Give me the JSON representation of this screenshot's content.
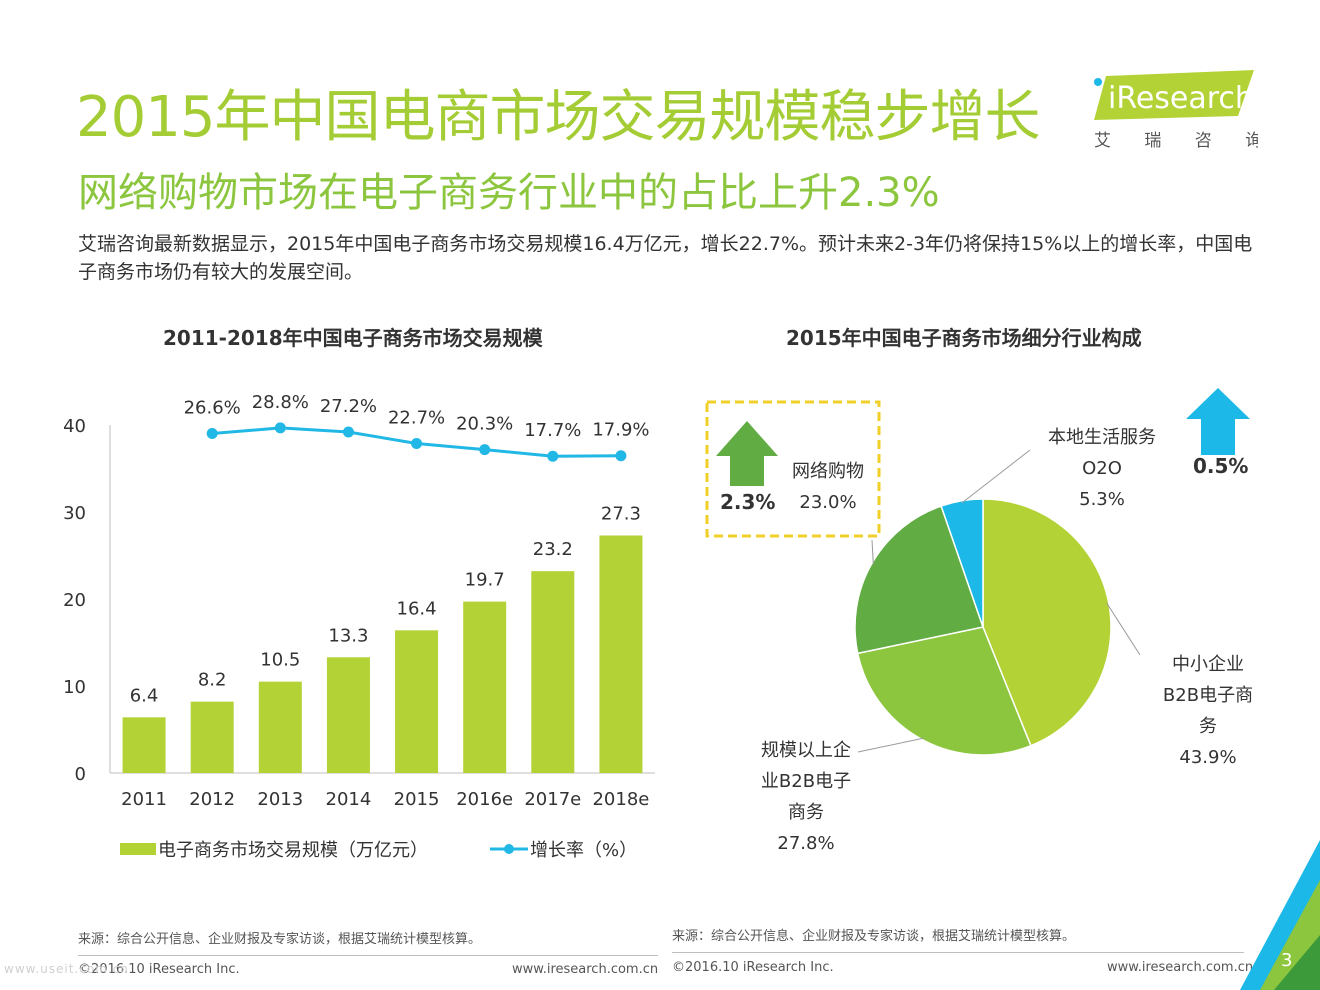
{
  "header": {
    "title": "2015年中国电商市场交易规模稳步增长",
    "subtitle": "网络购物市场在电子商务行业中的占比上升2.3%",
    "description": "艾瑞咨询最新数据显示，2015年中国电子商务市场交易规模16.4万亿元，增长22.7%。预计未来2-3年仍将保持15%以上的增长率，中国电子商务市场仍有较大的发展空间。"
  },
  "logo": {
    "brand": "iResearch",
    "cn": "艾 瑞 咨 询"
  },
  "colors": {
    "title_green": "#a4cc35",
    "bar": "#b3d235",
    "line": "#22b8e6",
    "pie1": "#b3d235",
    "pie2": "#8cc63f",
    "pie3": "#62ac44",
    "pie4": "#1cb8e8",
    "dash": "#f0d028"
  },
  "chart_data": [
    {
      "type": "bar",
      "title": "2011-2018年中国电子商务市场交易规模",
      "categories": [
        "2011",
        "2012",
        "2013",
        "2014",
        "2015",
        "2016e",
        "2017e",
        "2018e"
      ],
      "ylim": [
        0,
        40
      ],
      "yticks": [
        "0",
        "10",
        "20",
        "30",
        "40"
      ],
      "series": [
        {
          "name": "电子商务市场交易规模（万亿元）",
          "type": "bar",
          "values": [
            6.4,
            8.2,
            10.5,
            13.3,
            16.4,
            19.7,
            23.2,
            27.3
          ]
        },
        {
          "name": "增长率（%）",
          "type": "line",
          "values": [
            null,
            26.6,
            28.8,
            27.2,
            22.7,
            20.3,
            17.7,
            17.9
          ],
          "labels": [
            "",
            "26.6%",
            "28.8%",
            "27.2%",
            "22.7%",
            "20.3%",
            "17.7%",
            "17.9%"
          ]
        }
      ]
    },
    {
      "type": "pie",
      "title": "2015年中国电子商务市场细分行业构成",
      "slices": [
        {
          "label_lines": [
            "中小企业",
            "B2B电子商",
            "务"
          ],
          "value": 43.9,
          "value_label": "43.9%"
        },
        {
          "label_lines": [
            "规模以上企",
            "业B2B电子",
            "商务"
          ],
          "value": 27.8,
          "value_label": "27.8%"
        },
        {
          "label_lines": [
            "网络购物"
          ],
          "value": 23.0,
          "value_label": "23.0%"
        },
        {
          "label_lines": [
            "本地生活服务",
            "O2O"
          ],
          "value": 5.3,
          "value_label": "5.3%"
        }
      ],
      "annotations": {
        "shopping_change": "2.3%",
        "o2o_change": "0.5%"
      }
    }
  ],
  "footer": {
    "source_left": "来源：综合公开信息、企业财报及专家访谈，根据艾瑞统计模型核算。",
    "source_right": "来源：综合公开信息、企业财报及专家访谈，根据艾瑞统计模型核算。",
    "copyright_left": "©2016.10 iResearch Inc.",
    "url_left": "www.iresearch.com.cn",
    "copyright_right": "©2016.10 iResearch Inc.",
    "url_right": "www.iresearch.com.cn",
    "page": "3",
    "watermark": "www.useit.com.cn"
  }
}
